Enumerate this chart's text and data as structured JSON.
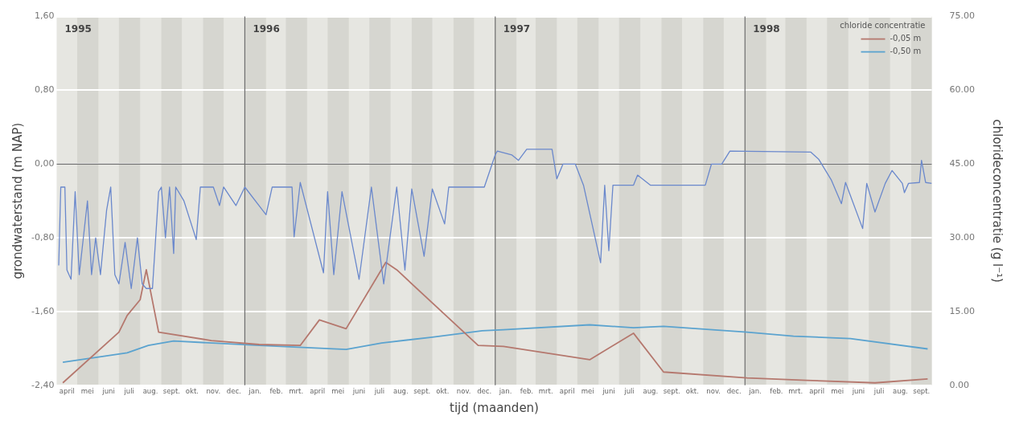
{
  "chart_data": {
    "type": "line",
    "xlabel": "tijd (maanden)",
    "ylabel": "grondwaterstand (m NAP)",
    "y2label": "chlorideconcentratie (g l⁻¹)",
    "legend_title": "chloride concentratie",
    "legend": "top right",
    "grid": "y",
    "annotations": [
      "1995"
    ],
    "xlim": [
      "1995-04-01",
      "1998-10-01"
    ],
    "xticks": [
      {
        "value": "1995-04-16",
        "label": "april"
      },
      {
        "value": "1995-05-16",
        "label": "mei"
      },
      {
        "value": "1995-06-16",
        "label": "juni"
      },
      {
        "value": "1995-07-16",
        "label": "juli"
      },
      {
        "value": "1995-08-16",
        "label": "aug."
      },
      {
        "value": "1995-09-16",
        "label": "sept."
      },
      {
        "value": "1995-10-16",
        "label": "okt."
      },
      {
        "value": "1995-11-16",
        "label": "nov."
      },
      {
        "value": "1995-12-16",
        "label": "dec."
      },
      {
        "value": "1996-01-16",
        "label": "jan."
      },
      {
        "value": "1996-02-16",
        "label": "feb."
      },
      {
        "value": "1996-03-16",
        "label": "mrt."
      },
      {
        "value": "1996-04-16",
        "label": "april"
      },
      {
        "value": "1996-05-16",
        "label": "mei"
      },
      {
        "value": "1996-06-16",
        "label": "juni"
      },
      {
        "value": "1996-07-16",
        "label": "juli"
      },
      {
        "value": "1996-08-16",
        "label": "aug."
      },
      {
        "value": "1996-09-16",
        "label": "sept."
      },
      {
        "value": "1996-10-16",
        "label": "okt."
      },
      {
        "value": "1996-11-16",
        "label": "nov."
      },
      {
        "value": "1996-12-16",
        "label": "dec."
      },
      {
        "value": "1997-01-16",
        "label": "jan."
      },
      {
        "value": "1997-02-16",
        "label": "feb."
      },
      {
        "value": "1997-03-16",
        "label": "mrt."
      },
      {
        "value": "1997-04-16",
        "label": "april"
      },
      {
        "value": "1997-05-16",
        "label": "mei"
      },
      {
        "value": "1997-06-16",
        "label": "juni"
      },
      {
        "value": "1997-07-16",
        "label": "juli"
      },
      {
        "value": "1997-08-16",
        "label": "aug."
      },
      {
        "value": "1997-09-16",
        "label": "sept."
      },
      {
        "value": "1997-10-16",
        "label": "okt."
      },
      {
        "value": "1997-11-16",
        "label": "nov."
      },
      {
        "value": "1997-12-16",
        "label": "dec."
      },
      {
        "value": "1998-01-16",
        "label": "jan."
      },
      {
        "value": "1998-02-16",
        "label": "feb."
      },
      {
        "value": "1998-03-16",
        "label": "mrt."
      },
      {
        "value": "1998-04-16",
        "label": "april"
      },
      {
        "value": "1998-05-16",
        "label": "mei"
      },
      {
        "value": "1998-06-16",
        "label": "juni"
      },
      {
        "value": "1998-07-16",
        "label": "juli"
      },
      {
        "value": "1998-08-16",
        "label": "aug."
      },
      {
        "value": "1998-09-16",
        "label": "sept."
      }
    ],
    "ylim": [
      -2.4,
      1.6
    ],
    "yticks": [
      {
        "value": -2.4,
        "label": "-2,40"
      },
      {
        "value": -1.6,
        "label": "-1,60"
      },
      {
        "value": -0.8,
        "label": "-0,80"
      },
      {
        "value": 0,
        "label": "0,00"
      },
      {
        "value": 0.8,
        "label": "0,80"
      },
      {
        "value": 1.6,
        "label": "1,60"
      }
    ],
    "y2lim": [
      0,
      75
    ],
    "y2ticks": [
      {
        "value": 0,
        "label": "0.00"
      },
      {
        "value": 15,
        "label": "15.00"
      },
      {
        "value": 30,
        "label": "30.00"
      },
      {
        "value": 45,
        "label": "45.00"
      },
      {
        "value": 60,
        "label": "60.00"
      },
      {
        "value": 75,
        "label": "75.00"
      }
    ],
    "ref_lines": [
      {
        "axis": "y",
        "value": 0,
        "color": "#6e6e6e"
      },
      {
        "axis": "x",
        "value": "1996-01-01",
        "label": "1996",
        "color": "#6e6e6e"
      },
      {
        "axis": "x",
        "value": "1997-01-01",
        "label": "1997",
        "color": "#6e6e6e"
      },
      {
        "axis": "x",
        "value": "1998-01-01",
        "label": "1998",
        "color": "#6e6e6e"
      }
    ],
    "bands": [
      {
        "axis": "x",
        "from": "1995-05-01",
        "to": "1995-06-01",
        "color": "#d6d6d0"
      },
      {
        "axis": "x",
        "from": "1995-07-01",
        "to": "1995-08-01",
        "color": "#d6d6d0"
      },
      {
        "axis": "x",
        "from": "1995-09-01",
        "to": "1995-10-01",
        "color": "#d6d6d0"
      },
      {
        "axis": "x",
        "from": "1995-11-01",
        "to": "1995-12-01",
        "color": "#d6d6d0"
      },
      {
        "axis": "x",
        "from": "1996-01-01",
        "to": "1996-02-01",
        "color": "#d6d6d0"
      },
      {
        "axis": "x",
        "from": "1996-03-01",
        "to": "1996-04-01",
        "color": "#d6d6d0"
      },
      {
        "axis": "x",
        "from": "1996-05-01",
        "to": "1996-06-01",
        "color": "#d6d6d0"
      },
      {
        "axis": "x",
        "from": "1996-07-01",
        "to": "1996-08-01",
        "color": "#d6d6d0"
      },
      {
        "axis": "x",
        "from": "1996-09-01",
        "to": "1996-10-01",
        "color": "#d6d6d0"
      },
      {
        "axis": "x",
        "from": "1996-11-01",
        "to": "1996-12-01",
        "color": "#d6d6d0"
      },
      {
        "axis": "x",
        "from": "1997-01-01",
        "to": "1997-02-01",
        "color": "#d6d6d0"
      },
      {
        "axis": "x",
        "from": "1997-03-01",
        "to": "1997-04-01",
        "color": "#d6d6d0"
      },
      {
        "axis": "x",
        "from": "1997-05-01",
        "to": "1997-06-01",
        "color": "#d6d6d0"
      },
      {
        "axis": "x",
        "from": "1997-07-01",
        "to": "1997-08-01",
        "color": "#d6d6d0"
      },
      {
        "axis": "x",
        "from": "1997-09-01",
        "to": "1997-10-01",
        "color": "#d6d6d0"
      },
      {
        "axis": "x",
        "from": "1997-11-01",
        "to": "1997-12-01",
        "color": "#d6d6d0"
      },
      {
        "axis": "x",
        "from": "1998-01-01",
        "to": "1998-02-01",
        "color": "#d6d6d0"
      },
      {
        "axis": "x",
        "from": "1998-03-01",
        "to": "1998-04-01",
        "color": "#d6d6d0"
      },
      {
        "axis": "x",
        "from": "1998-05-01",
        "to": "1998-06-01",
        "color": "#d6d6d0"
      },
      {
        "axis": "x",
        "from": "1998-07-01",
        "to": "1998-08-01",
        "color": "#d6d6d0"
      },
      {
        "axis": "x",
        "from": "1998-09-01",
        "to": "1998-10-01",
        "color": "#d6d6d0"
      }
    ],
    "series": [
      {
        "color": "#6a88cc",
        "axis": "y",
        "x": [
          "1995-04-04",
          "1995-04-07",
          "1995-04-13",
          "1995-04-16",
          "1995-04-22",
          "1995-04-28",
          "1995-05-04",
          "1995-05-16",
          "1995-05-22",
          "1995-05-28",
          "1995-06-04",
          "1995-06-13",
          "1995-06-19",
          "1995-06-25",
          "1995-07-01",
          "1995-07-10",
          "1995-07-19",
          "1995-07-28",
          "1995-08-04",
          "1995-08-10",
          "1995-08-19",
          "1995-08-28",
          "1995-09-01",
          "1995-09-07",
          "1995-09-13",
          "1995-09-19",
          "1995-09-22",
          "1995-10-04",
          "1995-10-22",
          "1995-10-28",
          "1995-11-16",
          "1995-11-25",
          "1995-12-01",
          "1995-12-19",
          "1996-01-01",
          "1996-02-01",
          "1996-02-10",
          "1996-03-10",
          "1996-03-13",
          "1996-03-22",
          "1996-04-25",
          "1996-05-01",
          "1996-05-10",
          "1996-05-22",
          "1996-06-16",
          "1996-07-04",
          "1996-07-22",
          "1996-08-10",
          "1996-08-22",
          "1996-09-01",
          "1996-09-19",
          "1996-10-01",
          "1996-10-19",
          "1996-10-25",
          "1996-12-16",
          "1997-01-01",
          "1997-01-04",
          "1997-01-25",
          "1997-02-04",
          "1997-02-16",
          "1997-03-25",
          "1997-04-01",
          "1997-04-10",
          "1997-04-28",
          "1997-05-10",
          "1997-06-04",
          "1997-06-10",
          "1997-06-16",
          "1997-06-22",
          "1997-07-22",
          "1997-07-28",
          "1997-08-16",
          "1997-11-04",
          "1997-11-13",
          "1997-11-28",
          "1997-12-10",
          "1998-04-07",
          "1998-04-19",
          "1998-05-07",
          "1998-05-22",
          "1998-05-28",
          "1998-06-22",
          "1998-06-28",
          "1998-07-10",
          "1998-07-25",
          "1998-08-04",
          "1998-08-19",
          "1998-08-22",
          "1998-08-28",
          "1998-09-13",
          "1998-09-16",
          "1998-09-22",
          "1998-10-01"
        ],
        "values": [
          -1.1,
          -0.25,
          -0.25,
          -1.15,
          -1.25,
          -0.3,
          -1.2,
          -0.4,
          -1.2,
          -0.8,
          -1.2,
          -0.5,
          -0.25,
          -1.2,
          -1.3,
          -0.85,
          -1.35,
          -0.8,
          -1.3,
          -1.35,
          -1.35,
          -0.3,
          -0.25,
          -0.8,
          -0.25,
          -0.97,
          -0.25,
          -0.4,
          -0.82,
          -0.25,
          -0.25,
          -0.45,
          -0.25,
          -0.45,
          -0.25,
          -0.55,
          -0.25,
          -0.25,
          -0.79,
          -0.2,
          -1.18,
          -0.3,
          -1.2,
          -0.3,
          -1.25,
          -0.25,
          -1.3,
          -0.25,
          -1.15,
          -0.27,
          -1.0,
          -0.27,
          -0.65,
          -0.25,
          -0.25,
          0.1,
          0.14,
          0.1,
          0.04,
          0.16,
          0.16,
          -0.16,
          0.0,
          0.0,
          -0.23,
          -1.07,
          -0.23,
          -0.94,
          -0.23,
          -0.23,
          -0.12,
          -0.23,
          -0.23,
          0.0,
          0.0,
          0.14,
          0.13,
          0.05,
          -0.17,
          -0.43,
          -0.2,
          -0.7,
          -0.21,
          -0.52,
          -0.21,
          -0.07,
          -0.21,
          -0.31,
          -0.21,
          -0.2,
          0.04,
          -0.2,
          -0.21
        ]
      },
      {
        "name": "-0,05 m",
        "color": "#b5786e",
        "axis": "y2",
        "x": [
          "1995-04-10",
          "1995-07-01",
          "1995-07-13",
          "1995-08-01",
          "1995-08-10",
          "1995-08-28",
          "1995-11-13",
          "1996-01-22",
          "1996-03-22",
          "1996-04-19",
          "1996-05-28",
          "1996-07-25",
          "1996-08-10",
          "1996-12-07",
          "1997-01-13",
          "1997-05-19",
          "1997-07-22",
          "1997-09-04",
          "1998-01-04",
          "1998-04-01",
          "1998-07-10",
          "1998-09-25"
        ],
        "values": [
          0.5,
          10.8,
          14.2,
          17.4,
          23.5,
          10.8,
          9.1,
          8.3,
          8.1,
          13.3,
          11.5,
          25.0,
          23.5,
          8.1,
          7.9,
          5.2,
          10.6,
          2.7,
          1.5,
          1.0,
          0.5,
          1.3
        ]
      },
      {
        "name": "-0,50 m",
        "color": "#5ba3cf",
        "axis": "y2",
        "x": [
          "1995-04-10",
          "1995-07-13",
          "1995-08-13",
          "1995-09-19",
          "1996-01-22",
          "1996-05-28",
          "1996-07-19",
          "1996-10-01",
          "1996-12-13",
          "1997-01-13",
          "1997-05-19",
          "1997-07-22",
          "1997-09-04",
          "1998-01-04",
          "1998-03-13",
          "1998-06-04",
          "1998-09-25"
        ],
        "values": [
          4.7,
          6.6,
          8.1,
          9.0,
          8.1,
          7.3,
          8.6,
          9.8,
          11.1,
          11.3,
          12.3,
          11.7,
          12.0,
          10.8,
          10.0,
          9.5,
          7.4
        ]
      }
    ]
  }
}
